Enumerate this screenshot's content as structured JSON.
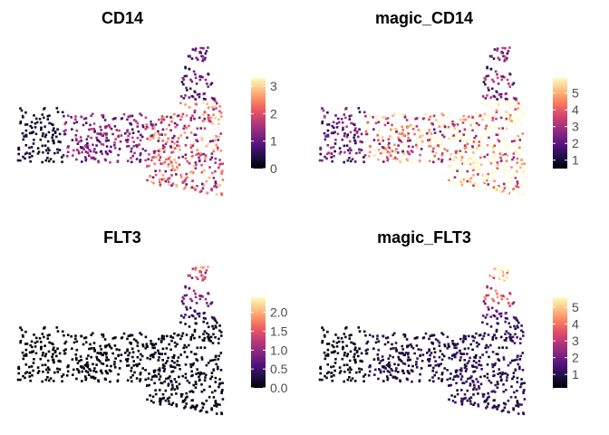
{
  "palette": [
    "#000004",
    "#1c1044",
    "#4f127b",
    "#812581",
    "#b5367a",
    "#e55064",
    "#fb8761",
    "#fec287",
    "#fcfdbf"
  ],
  "chart_data": [
    {
      "type": "scatter",
      "title": "CD14",
      "xlabel": "",
      "ylabel": "",
      "color_scale": "magma",
      "color_range": [
        0,
        3.3
      ],
      "legend_ticks": [
        "0",
        "1",
        "2",
        "3"
      ],
      "legend_tick_values": [
        0,
        1,
        2,
        3
      ],
      "legend_placement": "right",
      "grid": false,
      "feature": "CD14",
      "expression_by_region": {
        "left_cluster": 0.3,
        "middle_branch": 1.2,
        "lower_body": 2.0,
        "upper_stalk": 0.9
      }
    },
    {
      "type": "scatter",
      "title": "magic_CD14",
      "xlabel": "",
      "ylabel": "",
      "color_scale": "magma",
      "color_range": [
        0.5,
        5.9
      ],
      "legend_ticks": [
        "1",
        "2",
        "3",
        "4",
        "5"
      ],
      "legend_tick_values": [
        1,
        2,
        3,
        4,
        5
      ],
      "legend_placement": "right",
      "grid": false,
      "feature": "CD14",
      "expression_by_region": {
        "left_cluster": 2.2,
        "middle_branch": 4.2,
        "lower_body": 5.6,
        "upper_stalk": 2.4
      }
    },
    {
      "type": "scatter",
      "title": "FLT3",
      "xlabel": "",
      "ylabel": "",
      "color_scale": "magma",
      "color_range": [
        0,
        2.4
      ],
      "legend_ticks": [
        "0.0",
        "0.5",
        "1.0",
        "1.5",
        "2.0"
      ],
      "legend_tick_values": [
        0,
        0.5,
        1.0,
        1.5,
        2.0
      ],
      "legend_placement": "right",
      "grid": false,
      "feature": "FLT3",
      "expression_by_region": {
        "left_cluster": 0.0,
        "middle_branch": 0.05,
        "lower_body": 0.1,
        "upper_stalk": 0.9
      }
    },
    {
      "type": "scatter",
      "title": "magic_FLT3",
      "xlabel": "",
      "ylabel": "",
      "color_scale": "magma",
      "color_range": [
        0.2,
        5.6
      ],
      "legend_ticks": [
        "1",
        "2",
        "3",
        "4",
        "5"
      ],
      "legend_tick_values": [
        1,
        2,
        3,
        4,
        5
      ],
      "legend_placement": "right",
      "grid": false,
      "feature": "FLT3",
      "expression_by_region": {
        "left_cluster": 0.4,
        "middle_branch": 0.8,
        "lower_body": 1.0,
        "upper_stalk": 3.6
      }
    }
  ]
}
